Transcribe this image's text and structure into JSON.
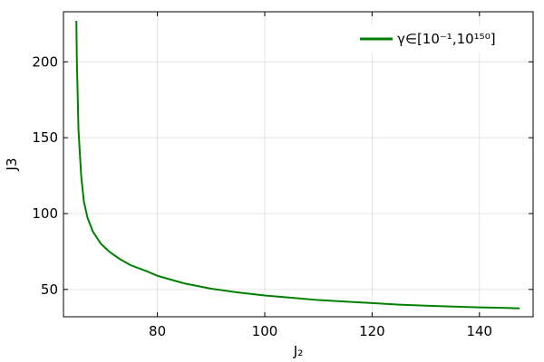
{
  "chart_data": {
    "type": "line",
    "title": "",
    "xlabel": "J₂",
    "ylabel": "J3",
    "xlim": [
      62.5,
      150
    ],
    "ylim": [
      32,
      233
    ],
    "x_ticks": [
      80,
      100,
      120,
      140
    ],
    "y_ticks": [
      50,
      100,
      150,
      200
    ],
    "grid": true,
    "legend_position": "top-right",
    "series": [
      {
        "name": "γ∈[10⁻¹,10¹⁵⁰]",
        "color": "#008000",
        "x": [
          64.9,
          65.0,
          65.3,
          65.8,
          66.3,
          67.0,
          68.0,
          69.5,
          71.0,
          73.0,
          75.0,
          78.0,
          80.0,
          85.0,
          90.0,
          95.0,
          100.0,
          105.0,
          110.0,
          115.0,
          120.0,
          125.0,
          130.0,
          135.0,
          140.0,
          145.0,
          147.5
        ],
        "y": [
          227,
          200,
          155,
          125,
          108,
          97,
          88,
          80,
          75,
          70,
          66,
          62,
          59,
          54,
          50.5,
          48,
          46,
          44.5,
          43,
          42,
          41,
          40,
          39.3,
          38.7,
          38.2,
          37.8,
          37.5
        ]
      }
    ]
  }
}
